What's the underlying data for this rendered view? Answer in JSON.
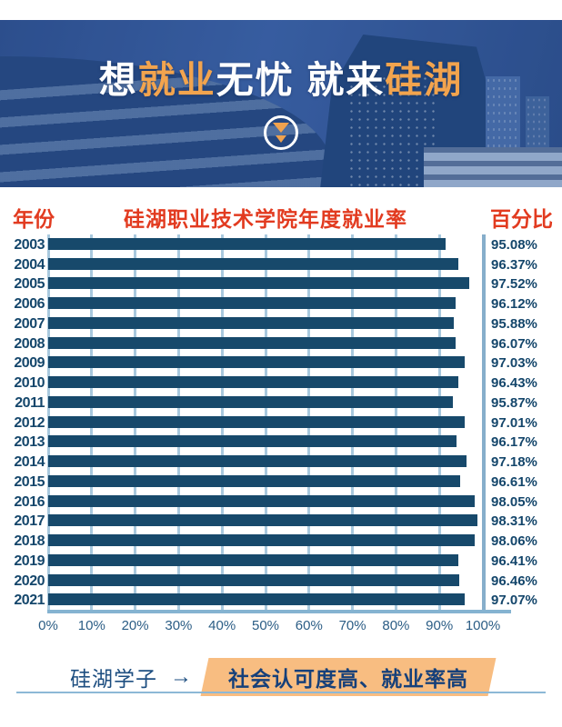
{
  "banner": {
    "title_segments": [
      {
        "text": "想",
        "accent": false
      },
      {
        "text": "就业",
        "accent": true
      },
      {
        "text": "无忧 就来",
        "accent": false
      },
      {
        "text": "硅湖",
        "accent": true
      }
    ],
    "scroll_icon": "double-chevron-down-icon"
  },
  "chart": {
    "left_header": "年份",
    "title": "硅湖职业技术学院年度就业率",
    "right_header": "百分比"
  },
  "chart_data": {
    "type": "bar",
    "orientation": "horizontal",
    "title": "硅湖职业技术学院年度就业率",
    "categories": [
      "2003",
      "2004",
      "2005",
      "2006",
      "2007",
      "2008",
      "2009",
      "2010",
      "2011",
      "2012",
      "2013",
      "2014",
      "2015",
      "2016",
      "2017",
      "2018",
      "2019",
      "2020",
      "2021"
    ],
    "values": [
      95.08,
      96.37,
      97.52,
      96.12,
      95.88,
      96.07,
      97.03,
      96.43,
      95.87,
      97.01,
      96.17,
      97.18,
      96.61,
      98.05,
      98.31,
      98.06,
      96.41,
      96.46,
      97.07
    ],
    "value_suffix": "%",
    "x_ticks": [
      "0%",
      "10%",
      "20%",
      "30%",
      "40%",
      "50%",
      "60%",
      "70%",
      "80%",
      "90%",
      "100%"
    ],
    "xlim": [
      0,
      100
    ],
    "grid": true,
    "legend": false,
    "bar_color": "#17496b",
    "ylabel": "年份",
    "xlabel": "百分比"
  },
  "footer": {
    "label": "硅湖学子",
    "arrow": "→",
    "badge": "社会认可度高、就业率高"
  },
  "colors": {
    "header_red": "#e23b20",
    "banner_accent_orange": "#f2a44e",
    "bar_navy": "#17496b",
    "gridline_blue": "#a9c9de",
    "axis_blue": "#85b3d1",
    "text_navy": "#14466b",
    "badge_orange": "#f8bd81",
    "banner_blue": "#2c4e8d"
  }
}
